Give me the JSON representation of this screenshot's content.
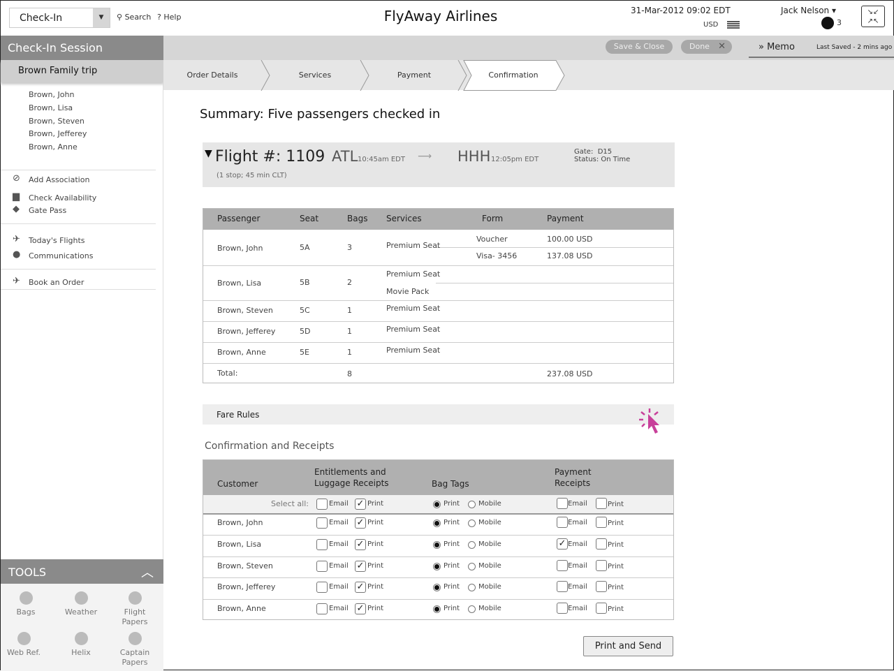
{
  "header": {
    "mode": "Check-In",
    "search": "Search",
    "help": "Help",
    "app_title": "FlyAway Airlines",
    "datetime": "31-Mar-2012  09:02 EDT",
    "currency": "USD",
    "user": "Jack Nelson",
    "notifications": "3"
  },
  "sidebar": {
    "session_title": "Check-In Session",
    "trip": "Brown Family trip",
    "passengers": [
      "Brown, John",
      "Brown, Lisa",
      "Brown, Steven",
      "Brown, Jefferey",
      "Brown, Anne"
    ],
    "actions": [
      {
        "label": "Add Association",
        "icon": "link-icon"
      },
      {
        "label": "Check Availability",
        "icon": "printer-icon"
      },
      {
        "label": "Gate Pass",
        "icon": "tag-icon"
      },
      {
        "label": "Today's Flights",
        "icon": "plane-icon"
      },
      {
        "label": "Communications",
        "icon": "chat-icon"
      },
      {
        "label": "Book an Order",
        "icon": "plane-icon"
      }
    ],
    "tools_title": "TOOLS",
    "tools": [
      [
        "Bags"
      ],
      [
        "Weather"
      ],
      [
        "Flight",
        "Papers"
      ],
      [
        "Web Ref."
      ],
      [
        "Helix"
      ],
      [
        "Captain",
        "Papers"
      ]
    ]
  },
  "toolbar": {
    "save_close": "Save & Close",
    "done": "Done",
    "memo": "Memo",
    "last_saved": "Last Saved - 2 mins ago"
  },
  "steps": [
    "Order Details",
    "Services",
    "Payment",
    "Confirmation"
  ],
  "active_step": "Confirmation",
  "summary_title": "Summary: Five passengers checked in",
  "flight": {
    "number": "Flight #: 1109",
    "from": "ATL",
    "dep": "10:45am EDT",
    "to": "HHH",
    "arr": "12:05pm EDT",
    "stops": "(1 stop; 45 min CLT)",
    "gate_label": "Gate:",
    "gate": "D15",
    "status_label": "Status:",
    "status": "On Time"
  },
  "summary_table": {
    "headers": [
      "Passenger",
      "Seat",
      "Bags",
      "Services",
      "Form",
      "Payment"
    ],
    "rows": [
      {
        "passenger": "Brown, John",
        "seat": "5A",
        "bags": "3",
        "services": [
          "Premium Seat"
        ],
        "payments": [
          [
            "Voucher",
            "100.00 USD"
          ],
          [
            "Visa- 3456",
            "137.08 USD"
          ]
        ]
      },
      {
        "passenger": "Brown, Lisa",
        "seat": "5B",
        "bags": "2",
        "services": [
          "Premium Seat",
          "Movie Pack"
        ],
        "payments": []
      },
      {
        "passenger": "Brown, Steven",
        "seat": "5C",
        "bags": "1",
        "services": [
          "Premium Seat"
        ],
        "payments": []
      },
      {
        "passenger": "Brown, Jefferey",
        "seat": "5D",
        "bags": "1",
        "services": [
          "Premium Seat"
        ],
        "payments": []
      },
      {
        "passenger": "Brown, Anne",
        "seat": "5E",
        "bags": "1",
        "services": [
          "Premium Seat"
        ],
        "payments": []
      }
    ],
    "total_label": "Total:",
    "total_bags": "8",
    "total_payment": "237.08 USD"
  },
  "fare_rules": "Fare Rules",
  "receipts": {
    "title": "Confirmation and Receipts",
    "headers": [
      "Customer",
      "Entitlements and\nLuggage Receipts",
      "Bag Tags",
      "Payment\nReceipts"
    ],
    "select_all": "Select all:",
    "email": "Email",
    "print": "Print",
    "mobile": "Mobile",
    "rows": [
      {
        "name": "Select all",
        "ent_email": false,
        "ent_print": true,
        "bag": "Print",
        "pay_email": false,
        "pay_print": false
      },
      {
        "name": "Brown, John",
        "ent_email": false,
        "ent_print": true,
        "bag": "Print",
        "pay_email": false,
        "pay_print": false
      },
      {
        "name": "Brown, Lisa",
        "ent_email": false,
        "ent_print": true,
        "bag": "Print",
        "pay_email": true,
        "pay_print": false
      },
      {
        "name": "Brown, Steven",
        "ent_email": false,
        "ent_print": true,
        "bag": "Print",
        "pay_email": false,
        "pay_print": false
      },
      {
        "name": "Brown, Jefferey",
        "ent_email": false,
        "ent_print": true,
        "bag": "Print",
        "pay_email": false,
        "pay_print": false
      },
      {
        "name": "Brown, Anne",
        "ent_email": false,
        "ent_print": true,
        "bag": "Print",
        "pay_email": false,
        "pay_print": false
      }
    ]
  },
  "print_send": "Print and Send",
  "colors": {
    "cursor": "#c8409a",
    "header_gray": "#8a8a8a"
  }
}
